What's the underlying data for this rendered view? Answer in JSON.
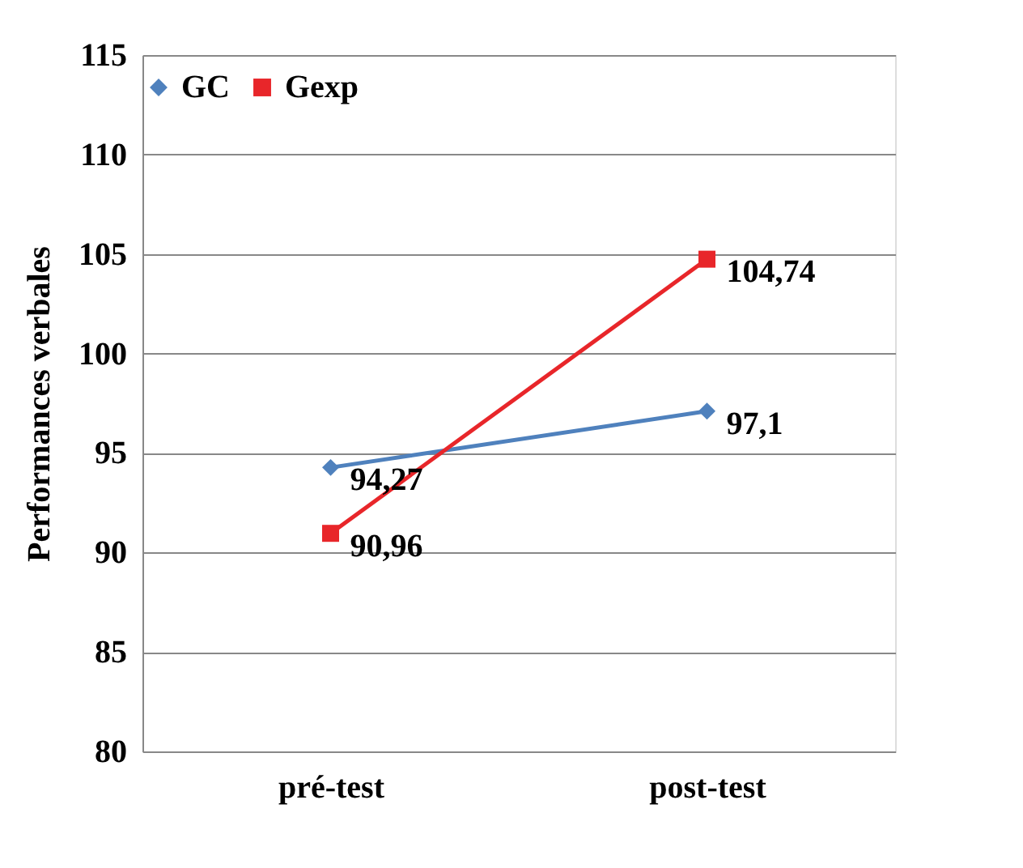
{
  "chart_data": {
    "type": "line",
    "ylabel": "Performances verbales",
    "categories": [
      "pré-test",
      "post-test"
    ],
    "series": [
      {
        "name": "GC",
        "color": "#4f81bd",
        "marker": "diamond",
        "values": [
          94.27,
          97.1
        ],
        "value_labels": [
          "94,27",
          "97,1"
        ]
      },
      {
        "name": "Gexp",
        "color": "#e8262a",
        "marker": "square",
        "values": [
          90.96,
          104.74
        ],
        "value_labels": [
          "90,96",
          "104,74"
        ]
      }
    ],
    "ylim": [
      80,
      115
    ],
    "yticks": [
      80,
      85,
      90,
      95,
      100,
      105,
      110,
      115
    ],
    "grid": "y",
    "legend": "top"
  }
}
